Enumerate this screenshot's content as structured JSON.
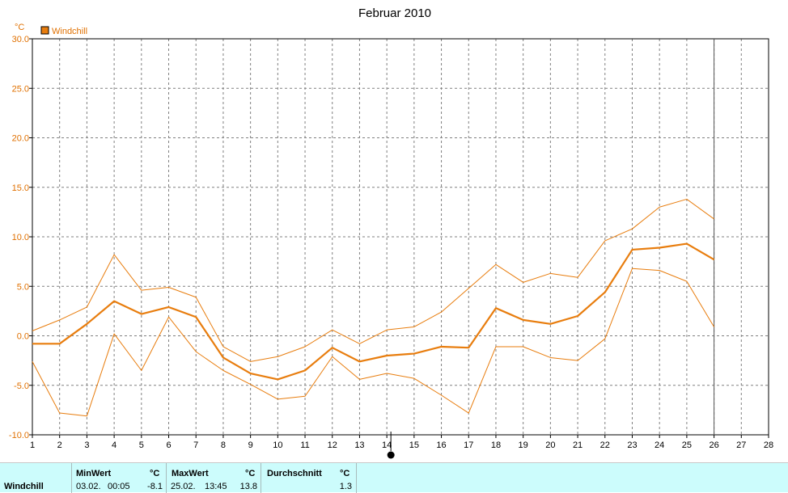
{
  "chart_data": {
    "type": "line",
    "title": "Februar 2010",
    "ylabel": "°C",
    "ylim": [
      -10.0,
      30.0
    ],
    "yticks": [
      "-10.0",
      "-5.0",
      "0.0",
      "5.0",
      "10.0",
      "15.0",
      "20.0",
      "25.0",
      "30.0"
    ],
    "xlim": [
      1,
      28
    ],
    "xticks": [
      "1",
      "2",
      "3",
      "4",
      "5",
      "6",
      "7",
      "8",
      "9",
      "10",
      "11",
      "12",
      "13",
      "14",
      "15",
      "16",
      "17",
      "18",
      "19",
      "20",
      "21",
      "22",
      "23",
      "24",
      "25",
      "26",
      "27",
      "28"
    ],
    "x": [
      1,
      2,
      3,
      4,
      5,
      6,
      7,
      8,
      9,
      10,
      11,
      12,
      13,
      14,
      15,
      16,
      17,
      18,
      19,
      20,
      21,
      22,
      23,
      24,
      25,
      26
    ],
    "legend": {
      "label": "Windchill",
      "position": "top-left"
    },
    "series": [
      {
        "name": "Windchill",
        "role": "average",
        "values": [
          -0.8,
          -0.8,
          1.2,
          3.5,
          2.2,
          2.9,
          1.9,
          -2.2,
          -3.8,
          -4.4,
          -3.5,
          -1.2,
          -2.6,
          -2.0,
          -1.8,
          -1.1,
          -1.2,
          2.8,
          1.6,
          1.2,
          2.0,
          4.4,
          8.7,
          8.9,
          9.3,
          7.7
        ]
      },
      {
        "role": "max",
        "values": [
          0.5,
          1.6,
          2.9,
          8.2,
          4.6,
          4.9,
          3.9,
          -1.1,
          -2.6,
          -2.1,
          -1.1,
          0.6,
          -0.8,
          0.6,
          0.9,
          2.4,
          4.8,
          7.2,
          5.4,
          6.3,
          5.9,
          9.6,
          10.8,
          13.0,
          13.8,
          11.8
        ]
      },
      {
        "role": "min",
        "values": [
          -2.6,
          -7.8,
          -8.1,
          0.2,
          -3.5,
          1.9,
          -1.6,
          -3.5,
          -4.9,
          -6.4,
          -6.1,
          -2.1,
          -4.4,
          -3.8,
          -4.3,
          -6.0,
          -7.8,
          -1.1,
          -1.1,
          -2.2,
          -2.5,
          -0.3,
          6.8,
          6.6,
          5.5,
          0.9
        ]
      }
    ],
    "grid": true,
    "colors": {
      "line": "#e87d0e",
      "grid": "#808080",
      "axis": "#000000",
      "label": "#e07000"
    },
    "current_day": 26,
    "marker_day": 14
  },
  "stats": {
    "series_label": "Windchill",
    "min": {
      "label": "MinWert",
      "unit": "°C",
      "date": "03.02.",
      "time": "00:05",
      "value": "-8.1"
    },
    "max": {
      "label": "MaxWert",
      "unit": "°C",
      "date": "25.02.",
      "time": "13:45",
      "value": "13.8"
    },
    "avg": {
      "label": "Durchschnitt",
      "unit": "°C",
      "value": "1.3"
    }
  }
}
